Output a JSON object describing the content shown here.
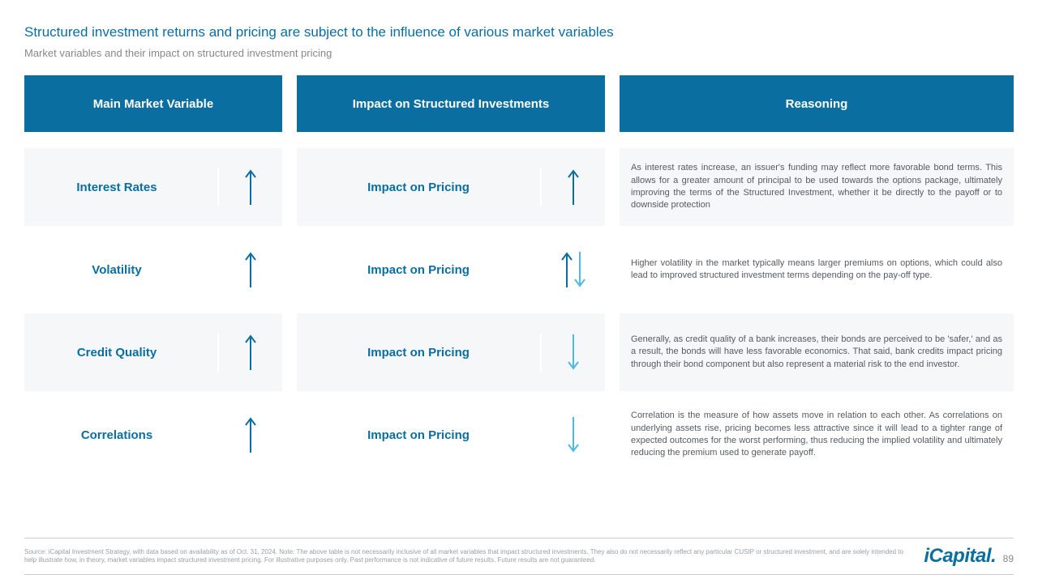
{
  "title": "Structured investment returns and pricing are subject to the influence of various market variables",
  "subtitle": "Market variables and their impact on structured investment pricing",
  "headers": {
    "col1": "Main Market Variable",
    "col2": "Impact on Structured Investments",
    "col3": "Reasoning"
  },
  "impact_label": "Impact on Pricing",
  "rows": [
    {
      "variable": "Interest Rates",
      "var_arrows": [
        {
          "dir": "up",
          "color": "#0a6ea0"
        }
      ],
      "impact_arrows": [
        {
          "dir": "up",
          "color": "#0a6ea0"
        }
      ],
      "reason": "As interest rates increase, an issuer's funding may reflect more favorable bond terms. This allows for a greater amount of principal to be used towards the options package, ultimately improving the terms of the Structured Investment, whether it be directly to the payoff or to downside protection",
      "alt": true
    },
    {
      "variable": "Volatility",
      "var_arrows": [
        {
          "dir": "up",
          "color": "#0a6ea0"
        }
      ],
      "impact_arrows": [
        {
          "dir": "up",
          "color": "#0a6ea0"
        },
        {
          "dir": "down",
          "color": "#4db8e8"
        }
      ],
      "reason": "Higher volatility in the market typically means larger premiums on options, which could also lead to improved structured investment terms depending on the pay-off type.",
      "alt": false
    },
    {
      "variable": "Credit Quality",
      "var_arrows": [
        {
          "dir": "up",
          "color": "#0a6ea0"
        }
      ],
      "impact_arrows": [
        {
          "dir": "down",
          "color": "#4db8e8"
        }
      ],
      "reason": "Generally, as credit quality of a bank increases, their bonds are perceived to be 'safer,' and as a result, the bonds will have less favorable economics. That said, bank credits impact pricing through their bond component but also represent a material risk to the end investor.",
      "alt": true
    },
    {
      "variable": "Correlations",
      "var_arrows": [
        {
          "dir": "up",
          "color": "#0a6ea0"
        }
      ],
      "impact_arrows": [
        {
          "dir": "down",
          "color": "#4db8e8"
        }
      ],
      "reason": "Correlation is the measure of how assets move in relation to each other. As correlations on underlying assets rise, pricing becomes less attractive since it will lead to a tighter range of expected outcomes for the worst performing, thus reducing the implied volatility and ultimately reducing the premium used to generate payoff.",
      "alt": false
    }
  ],
  "source": "Source: iCapital Investment Strategy, with data based on availability as of Oct. 31, 2024. Note: The above table is not necessarily inclusive of all market variables that impact structured investments. They also do not necessarily reflect any particular CUSIP or structured investment, and are solely intended to help illustrate how, in theory, market variables impact structured investment pricing. For illustrative purposes only. Past performance is not indicative of future results. Future results are not guaranteed.",
  "logo": "iCapital",
  "page_number": "89",
  "colors": {
    "header_bg": "#0a6ea0",
    "accent_dark": "#0a6ea0",
    "accent_light": "#4db8e8",
    "alt_bg": "#f5f7f8"
  }
}
